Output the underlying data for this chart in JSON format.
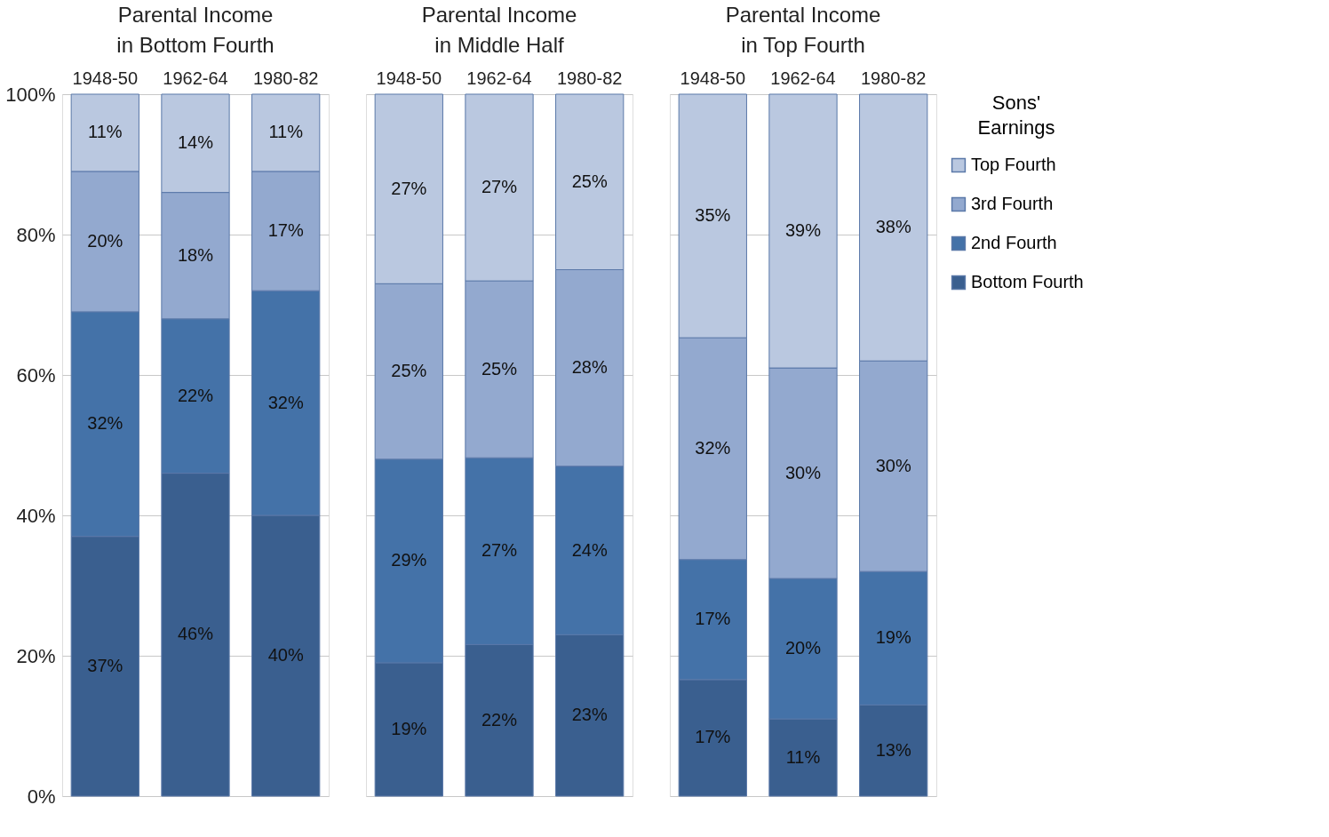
{
  "chart_data": [
    {
      "type": "bar",
      "title": "Parental Income in Bottom Fourth",
      "stacked": true,
      "categories": [
        "1948-50",
        "1962-64",
        "1980-82"
      ],
      "series": [
        {
          "color": "#3a5f8f",
          "values": [
            37,
            46,
            40
          ],
          "value_labels": [
            "37%",
            "46%",
            "40%"
          ]
        },
        {
          "color": "#4472a8",
          "values": [
            32,
            22,
            32
          ],
          "value_labels": [
            "32%",
            "22%",
            "32%"
          ]
        },
        {
          "color": "#93a9cf",
          "values": [
            20,
            18,
            17
          ],
          "value_labels": [
            "20%",
            "18%",
            "17%"
          ]
        },
        {
          "color": "#bac8e0",
          "values": [
            11,
            14,
            11
          ],
          "value_labels": [
            "11%",
            "14%",
            "11%"
          ]
        }
      ],
      "ylim": [
        0,
        100
      ],
      "yticks": [
        {
          "value": 0,
          "label": "0%"
        },
        {
          "value": 20,
          "label": "20%"
        },
        {
          "value": 40,
          "label": "40%"
        },
        {
          "value": 60,
          "label": "60%"
        },
        {
          "value": 80,
          "label": "80%"
        },
        {
          "value": 100,
          "label": "100%"
        }
      ],
      "grid": "y"
    },
    {
      "type": "bar",
      "title": "Parental Income in Middle Half",
      "stacked": true,
      "categories": [
        "1948-50",
        "1962-64",
        "1980-82"
      ],
      "series": [
        {
          "color": "#3a5f8f",
          "values": [
            19,
            21.6,
            23
          ],
          "value_labels": [
            "19%",
            "22%",
            "23%"
          ]
        },
        {
          "color": "#4472a8",
          "values": [
            29,
            26.6,
            24
          ],
          "value_labels": [
            "29%",
            "27%",
            "24%"
          ]
        },
        {
          "color": "#93a9cf",
          "values": [
            25,
            25.2,
            28
          ],
          "value_labels": [
            "25%",
            "25%",
            "28%"
          ]
        },
        {
          "color": "#bac8e0",
          "values": [
            27,
            26.6,
            25
          ],
          "value_labels": [
            "27%",
            "27%",
            "25%"
          ]
        }
      ],
      "ylim": [
        0,
        100
      ],
      "yticks": [
        0,
        20,
        40,
        60,
        80,
        100
      ],
      "grid": "y",
      "tick_labels": "x"
    },
    {
      "type": "bar",
      "title": "Parental Income in Top Fourth",
      "stacked": true,
      "categories": [
        "1948-50",
        "1962-64",
        "1980-82"
      ],
      "series": [
        {
          "name": "Bottom Fourth",
          "color": "#3a5f8f",
          "values": [
            16.6,
            11,
            13
          ],
          "value_labels": [
            "17%",
            "11%",
            "13%"
          ]
        },
        {
          "name": "2nd Fourth",
          "color": "#4472a8",
          "values": [
            17.1,
            20,
            19
          ],
          "value_labels": [
            "17%",
            "20%",
            "19%"
          ]
        },
        {
          "name": "3rd Fourth",
          "color": "#93a9cf",
          "values": [
            31.6,
            30,
            30
          ],
          "value_labels": [
            "32%",
            "30%",
            "30%"
          ]
        },
        {
          "name": "Top Fourth",
          "color": "#bac8e0",
          "values": [
            34.7,
            39,
            38
          ],
          "value_labels": [
            "35%",
            "39%",
            "38%"
          ]
        }
      ],
      "ylim": [
        0,
        100
      ],
      "yticks": [
        0,
        20,
        40,
        60,
        80,
        100
      ],
      "grid": "y",
      "tick_labels": "x",
      "legend": "right",
      "legend_title": "Sons' Earnings"
    }
  ]
}
